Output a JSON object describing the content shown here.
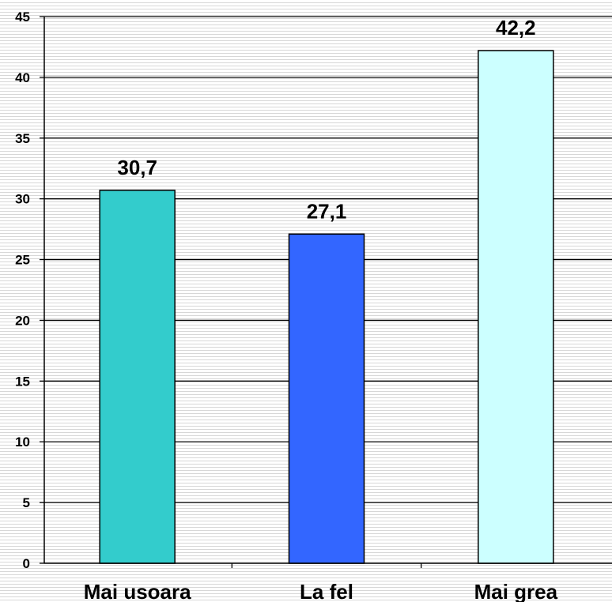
{
  "chart_data": {
    "type": "bar",
    "title": "",
    "xlabel": "",
    "ylabel": "",
    "categories": [
      "Mai usoara",
      "La fel",
      "Mai grea"
    ],
    "values": [
      30.7,
      27.1,
      42.2
    ],
    "data_labels": [
      "30,7",
      "27,1",
      "42,2"
    ],
    "colors": [
      "#33cccc",
      "#3366ff",
      "#ccffff"
    ],
    "ylim": [
      0,
      45
    ],
    "yticks": [
      0,
      5,
      10,
      15,
      20,
      25,
      30,
      35,
      40,
      45
    ],
    "grid": true,
    "legend": "none"
  }
}
